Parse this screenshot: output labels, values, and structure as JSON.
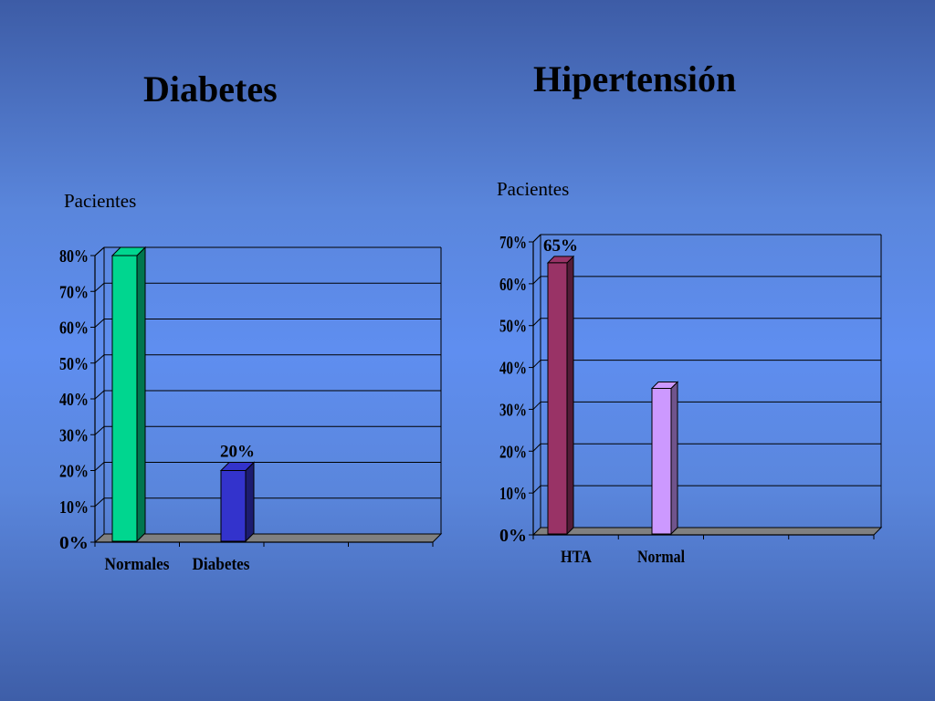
{
  "slide": {
    "left_title": "Diabetes",
    "right_title": "Hipertensión"
  },
  "chart_data": [
    {
      "type": "bar",
      "title": "Diabetes",
      "ylabel": "Pacientes",
      "xlabel": "",
      "categories": [
        "Normales",
        "Diabetes"
      ],
      "values": [
        80,
        20
      ],
      "ylim": [
        0,
        80
      ],
      "yticks": [
        "0%",
        "10%",
        "20%",
        "30%",
        "40%",
        "50%",
        "60%",
        "70%",
        "80%"
      ],
      "data_labels": [
        "",
        "20%"
      ],
      "colors": [
        "#00d68f",
        "#3333cc"
      ],
      "grid": true,
      "legend": false
    },
    {
      "type": "bar",
      "title": "Hipertensión",
      "ylabel": "Pacientes",
      "xlabel": "",
      "categories": [
        "HTA",
        "Normal"
      ],
      "values": [
        65,
        35
      ],
      "ylim": [
        0,
        70
      ],
      "yticks": [
        "0%",
        "10%",
        "20%",
        "30%",
        "40%",
        "50%",
        "60%",
        "70%"
      ],
      "data_labels": [
        "65%",
        ""
      ],
      "colors": [
        "#993366",
        "#cc99ff"
      ],
      "grid": true,
      "legend": false
    }
  ]
}
